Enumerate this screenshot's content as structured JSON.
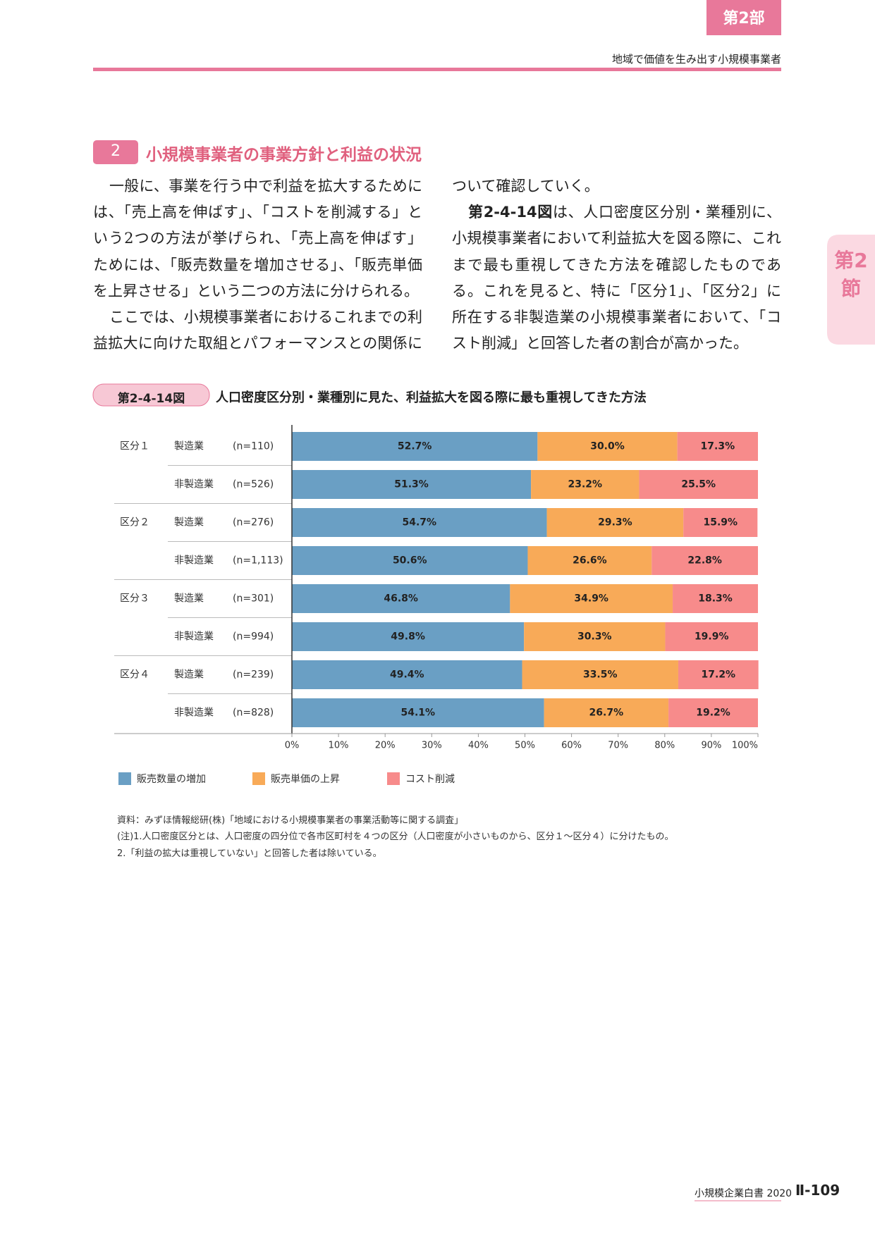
{
  "header": {
    "part_tab": "第2部",
    "running_title": "地域で価値を生み出す小規模事業者",
    "section_tab": "第2節"
  },
  "section": {
    "number": "2",
    "title": "小規模事業者の事業方針と利益の状況"
  },
  "body": {
    "left_lines": [
      "一般に、事業を行う中で利益を拡大するために",
      "は、「売上高を伸ばす」、「コストを削減する」と",
      "いう2つの方法が挙げられ、「売上高を伸ばす」",
      "ためには、「販売数量を増加させる」、「販売単価",
      "を上昇させる」という二つの方法に分けられる。",
      "ここでは、小規模事業者におけるこれまでの利",
      "益拡大に向けた取組とパフォーマンスとの関係に"
    ],
    "right_lines": [
      "ついて確認していく。",
      [
        "第2-4-14図",
        "は、人口密度区分別・業種別に、"
      ],
      "小規模事業者において利益拡大を図る際に、これ",
      "まで最も重視してきた方法を確認したものであ",
      "る。これを見ると、特に「区分1」、「区分2」に",
      "所在する非製造業の小規模事業者において、「コ",
      "スト削減」と回答した者の割合が高かった。"
    ]
  },
  "chart_data": {
    "type": "stacked-bar-horizontal",
    "figure_number": "第2-4-14図",
    "title": "人口密度区分別・業種別に見た、利益拡大を図る際に最も重視してきた方法",
    "groups": [
      "区分１",
      null,
      "区分２",
      null,
      "区分３",
      null,
      "区分４",
      null
    ],
    "categories": [
      "製造業",
      "非製造業",
      "製造業",
      "非製造業",
      "製造業",
      "非製造業",
      "製造業",
      "非製造業"
    ],
    "sample_sizes": [
      "(n=110)",
      "(n=526)",
      "(n=276)",
      "(n=1,113)",
      "(n=301)",
      "(n=994)",
      "(n=239)",
      "(n=828)"
    ],
    "series": [
      {
        "name": "販売数量の増加",
        "color": "#6a9fc4",
        "values": [
          52.7,
          51.3,
          54.7,
          50.6,
          46.8,
          49.8,
          49.4,
          54.1
        ],
        "value_labels": [
          "52.7%",
          "51.3%",
          "54.7%",
          "50.6%",
          "46.8%",
          "49.8%",
          "49.4%",
          "54.1%"
        ]
      },
      {
        "name": "販売単価の上昇",
        "color": "#f8aa58",
        "values": [
          30.0,
          23.2,
          29.3,
          26.6,
          34.9,
          30.3,
          33.5,
          26.7
        ],
        "value_labels": [
          "30.0%",
          "23.2%",
          "29.3%",
          "26.6%",
          "34.9%",
          "30.3%",
          "33.5%",
          "26.7%"
        ]
      },
      {
        "name": "コスト削減",
        "color": "#f78b8b",
        "values": [
          17.3,
          25.5,
          15.9,
          22.8,
          18.3,
          19.9,
          17.2,
          19.2
        ],
        "value_labels": [
          "17.3%",
          "25.5%",
          "15.9%",
          "22.8%",
          "18.3%",
          "19.9%",
          "17.2%",
          "19.2%"
        ]
      }
    ],
    "xlim": [
      0,
      100
    ],
    "xticks": [
      {
        "value": 0,
        "label": "0%"
      },
      {
        "value": 10,
        "label": "10%"
      },
      {
        "value": 20,
        "label": "20%"
      },
      {
        "value": 30,
        "label": "30%"
      },
      {
        "value": 40,
        "label": "40%"
      },
      {
        "value": 50,
        "label": "50%"
      },
      {
        "value": 60,
        "label": "60%"
      },
      {
        "value": 70,
        "label": "70%"
      },
      {
        "value": 80,
        "label": "80%"
      },
      {
        "value": 90,
        "label": "90%"
      },
      {
        "value": 100,
        "label": "100%"
      }
    ]
  },
  "notes": [
    "資料：みずほ情報総研(株)「地域における小規模事業者の事業活動等に関する調査」",
    "(注)1.人口密度区分とは、人口密度の四分位で各市区町村を４つの区分（人口密度が小さいものから、区分１～区分４）に分けたもの。",
    "2.「利益の拡大は重視していない」と回答した者は除いている。"
  ],
  "footer": {
    "book": "小規模企業白書 2020",
    "page": "Ⅱ-109"
  }
}
